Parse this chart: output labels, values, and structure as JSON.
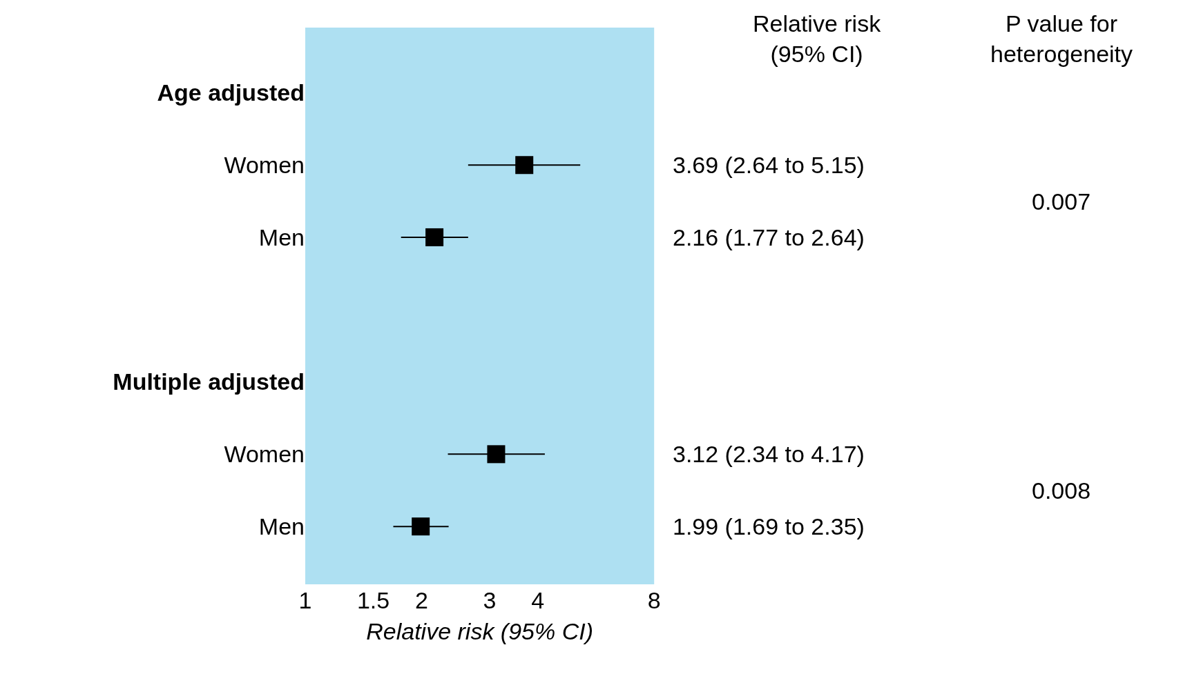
{
  "chart_data": {
    "type": "scatter",
    "orientation": "horizontal",
    "xlabel": "Relative risk (95% CI)",
    "categories": [
      "Age adjusted",
      "Women",
      "Men",
      null,
      "Multiple adjusted",
      "Women",
      "Men"
    ],
    "values": [
      null,
      3.69,
      2.16,
      null,
      null,
      3.12,
      1.99
    ],
    "errors": [
      null,
      [
        2.64,
        5.15
      ],
      [
        1.77,
        2.64
      ],
      null,
      null,
      [
        2.34,
        4.17
      ],
      [
        1.69,
        2.35
      ]
    ],
    "value_labels": [
      null,
      "3.69 (2.64 to 5.15)",
      "2.16 (1.77 to 2.64)",
      null,
      null,
      "3.12 (2.34 to 4.17)",
      "1.99 (1.69 to 2.35)"
    ],
    "color": "#000000",
    "marker": "square",
    "log": "x",
    "grid": false,
    "xlim": [
      1,
      8
    ],
    "xticks": [
      1,
      1.5,
      2,
      3,
      4,
      8
    ],
    "annotations": [
      "Relative risk\n(95% CI)",
      "P value for\nheterogeneity",
      "0.007",
      "0.008"
    ]
  }
}
